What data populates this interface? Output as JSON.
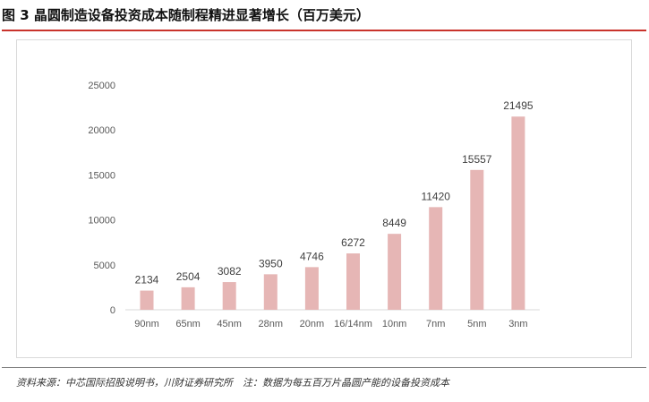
{
  "title": "图 3 晶圆制造设备投资成本随制程精进显著增长（百万美元）",
  "source_note": "资料来源：中芯国际招股说明书，川财证券研究所　注：数据为每五百万片晶圆产能的设备投资成本",
  "colors": {
    "bar": "#e6b6b5",
    "title_rule": "#c9332c"
  },
  "chart_data": {
    "type": "bar",
    "title": "",
    "xlabel": "",
    "ylabel": "",
    "ylim": [
      0,
      25000
    ],
    "yticks": [
      0,
      5000,
      10000,
      15000,
      20000,
      25000
    ],
    "grid": false,
    "legend": "none",
    "categories": [
      "90nm",
      "65nm",
      "45nm",
      "28nm",
      "20nm",
      "16/14nm",
      "10nm",
      "7nm",
      "5nm",
      "3nm"
    ],
    "values": [
      2134,
      2504,
      3082,
      3950,
      4746,
      6272,
      8449,
      11420,
      15557,
      21495
    ]
  }
}
